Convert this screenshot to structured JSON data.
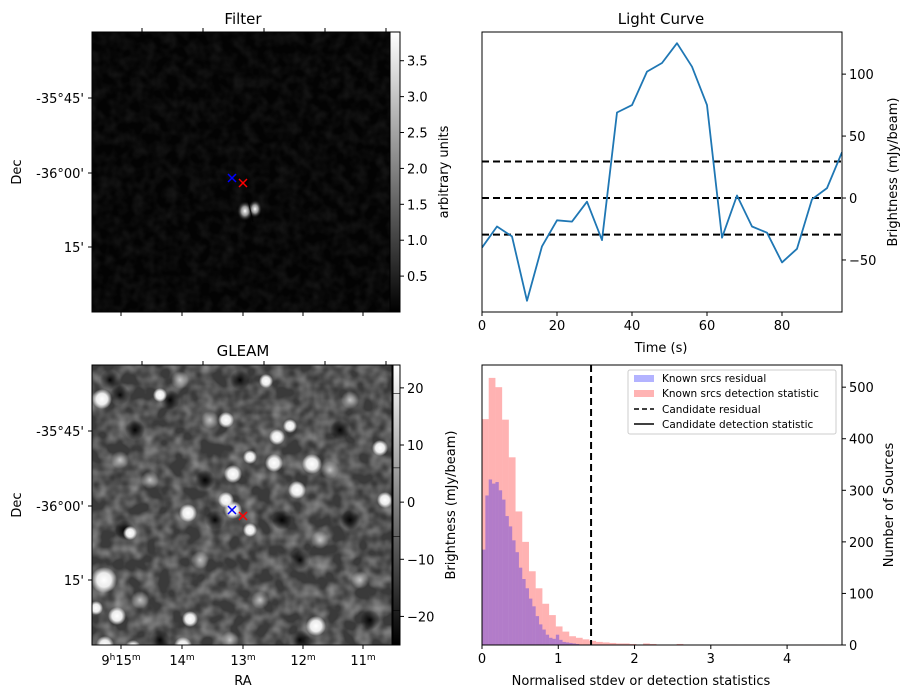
{
  "chart_data": [
    {
      "type": "heatmap",
      "id": "filter",
      "title": "Filter",
      "ylabel": "Dec",
      "xlabel": "",
      "yticks": [
        "-35°45'",
        "-36°00'",
        "15'"
      ],
      "colormap": "gray",
      "colorbar": {
        "label": "arbitrary units",
        "range": [
          0.0,
          3.9
        ],
        "ticks": [
          "0.5",
          "1.0",
          "1.5",
          "2.0",
          "2.5",
          "3.0",
          "3.5"
        ]
      },
      "markers": [
        {
          "name": "blue-cross",
          "color": "#0000ff",
          "symbol": "x"
        },
        {
          "name": "red-cross",
          "color": "#ff0000",
          "symbol": "x"
        }
      ],
      "features": "Dark field with a single bright double-lobed source just south-east of the markers"
    },
    {
      "type": "line",
      "id": "light_curve",
      "title": "Light Curve",
      "xlabel": "Time (s)",
      "ylabel": "Brightness (mJy/beam)",
      "xlim": [
        0,
        96
      ],
      "ylim": [
        -92,
        134
      ],
      "xticks": [
        "0",
        "20",
        "40",
        "60",
        "80"
      ],
      "yticks": [
        "−50",
        "0",
        "50",
        "100"
      ],
      "x": [
        0,
        4,
        8,
        12,
        16,
        20,
        24,
        28,
        32,
        36,
        40,
        44,
        48,
        52,
        56,
        60,
        64,
        68,
        72,
        76,
        80,
        84,
        88,
        92,
        96
      ],
      "series": [
        {
          "name": "light curve",
          "color": "#1f77b4",
          "values": [
            -40,
            -23,
            -31,
            -83,
            -39,
            -18,
            -19,
            -3,
            -34,
            69,
            75,
            102,
            109,
            125,
            106,
            75,
            -32,
            2,
            -23,
            -28,
            -52,
            -41,
            -1,
            8,
            37
          ]
        }
      ],
      "hlines": [
        {
          "y": 29.5,
          "style": "dashed",
          "color": "#000000"
        },
        {
          "y": 0,
          "style": "dashed",
          "color": "#000000"
        },
        {
          "y": -29.5,
          "style": "dashed",
          "color": "#000000"
        }
      ]
    },
    {
      "type": "heatmap",
      "id": "gleam",
      "title": "GLEAM",
      "xlabel": "RA",
      "ylabel": "Dec",
      "xticks": [
        {
          "main": "9",
          "sup1": "h",
          "mid": "15",
          "sup2": "m"
        },
        {
          "main": "",
          "sup1": "",
          "mid": "14",
          "sup2": "m"
        },
        {
          "main": "",
          "sup1": "",
          "mid": "13",
          "sup2": "m"
        },
        {
          "main": "",
          "sup1": "",
          "mid": "12",
          "sup2": "m"
        },
        {
          "main": "",
          "sup1": "",
          "mid": "11",
          "sup2": "m"
        }
      ],
      "yticks": [
        "-35°45'",
        "-36°00'",
        "15'"
      ],
      "colormap": "gray",
      "colorbar": {
        "label": "Brightness (mJy/beam)",
        "range": [
          -25,
          24
        ],
        "ticks": [
          "20",
          "10",
          "0",
          "−10",
          "−20"
        ]
      },
      "markers": [
        {
          "name": "blue-cross",
          "color": "#0000ff",
          "symbol": "x"
        },
        {
          "name": "red-cross",
          "color": "#ff0000",
          "symbol": "x"
        }
      ],
      "features": "Noisy mottled field with many compact bright point sources"
    },
    {
      "type": "bar",
      "id": "histogram",
      "title": "",
      "xlabel": "Normalised stdev or detection statistics",
      "ylabel": "Number of Sources",
      "xlim": [
        0,
        4.72
      ],
      "ylim": [
        0,
        543
      ],
      "xticks": [
        "0",
        "1",
        "2",
        "3",
        "4"
      ],
      "yticks": [
        "0",
        "100",
        "200",
        "300",
        "400",
        "500"
      ],
      "legend": {
        "position": "upper-right",
        "entries": [
          {
            "label": "Known srcs residual",
            "kind": "patch",
            "color": "#b3b3ff"
          },
          {
            "label": "Known srcs detection statistic",
            "kind": "patch",
            "color": "#ffb3b3"
          },
          {
            "label": "Candidate residual",
            "kind": "dashed-line",
            "color": "#000000"
          },
          {
            "label": "Candidate detection statistic",
            "kind": "solid-line",
            "color": "#000000"
          }
        ]
      },
      "vline": {
        "x": 1.43,
        "style": "dashed",
        "color": "#000000",
        "label": "Candidate residual"
      },
      "series": [
        {
          "name": "Known srcs detection statistic",
          "color": "#ff0000",
          "alpha": 0.3,
          "bin_start": 0,
          "bin_width": 0.088,
          "counts": [
            438,
            518,
            500,
            437,
            364,
            259,
            200,
            143,
            110,
            80,
            58,
            36,
            26,
            17,
            14,
            11,
            8,
            6,
            5,
            4,
            3,
            3,
            2,
            1,
            3,
            2,
            1,
            1,
            0,
            2,
            1,
            0,
            0,
            0,
            0,
            0,
            0,
            1,
            0,
            1,
            0,
            0,
            0,
            0,
            0,
            0,
            0,
            0,
            1,
            0,
            1
          ]
        },
        {
          "name": "Known srcs residual",
          "color": "#0000ff",
          "alpha": 0.3,
          "bin_start": 0,
          "bin_width": 0.044,
          "counts": [
            185,
            290,
            321,
            313,
            316,
            300,
            282,
            250,
            230,
            203,
            180,
            150,
            128,
            110,
            90,
            75,
            56,
            40,
            30,
            20,
            14,
            12,
            20,
            10,
            6,
            5,
            4,
            3,
            2,
            1,
            1,
            1,
            1,
            1,
            1,
            1,
            0,
            0,
            0,
            0,
            0
          ]
        }
      ]
    }
  ]
}
